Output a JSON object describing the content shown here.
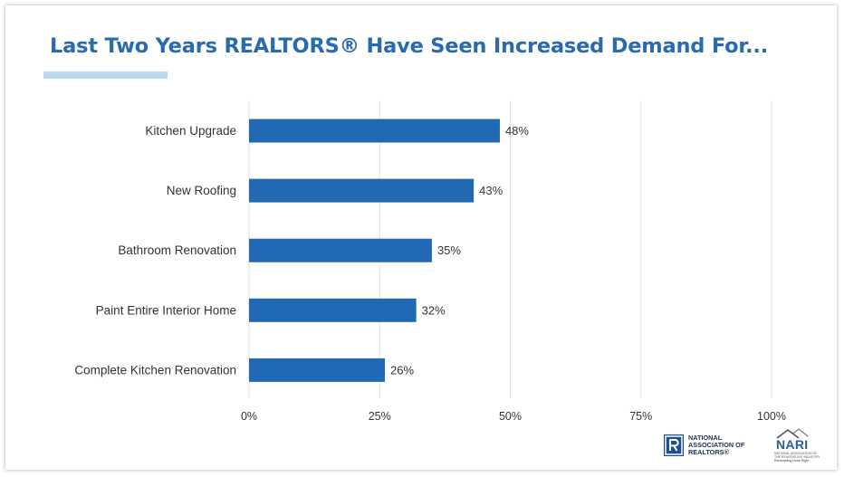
{
  "slide": {
    "title": "Last Two Years REALTORS® Have Seen Increased Demand For..."
  },
  "colors": {
    "title": "#2a6aae",
    "bar": "#2169b2",
    "underline": "#bcd8ee",
    "grid": "#e2e2e2",
    "text": "#333333"
  },
  "chart_data": {
    "type": "bar",
    "orientation": "horizontal",
    "title": "Last Two Years REALTORS® Have Seen Increased Demand For...",
    "categories": [
      "Kitchen Upgrade",
      "New Roofing",
      "Bathroom Renovation",
      "Paint Entire Interior Home",
      "Complete Kitchen Renovation"
    ],
    "values": [
      48,
      43,
      35,
      32,
      26
    ],
    "value_labels": [
      "48%",
      "43%",
      "35%",
      "32%",
      "26%"
    ],
    "xlim": [
      0,
      100
    ],
    "xticks": [
      0,
      25,
      50,
      75,
      100
    ],
    "xtick_labels": [
      "0%",
      "25%",
      "50%",
      "75%",
      "100%"
    ],
    "xlabel": "",
    "ylabel": "",
    "grid": "vertical",
    "legend": "none"
  },
  "logos": {
    "nar": {
      "lines": [
        "NATIONAL",
        "ASSOCIATION OF",
        "REALTORS®"
      ],
      "icon": "realtor-r-icon"
    },
    "nari": {
      "word": "NARI",
      "sub_lines": [
        "NATIONAL ASSOCIATION OF",
        "THE REMODELING INDUSTRY"
      ],
      "tagline": "Remodeling Done Right",
      "icon": "house-roof-icon"
    }
  }
}
